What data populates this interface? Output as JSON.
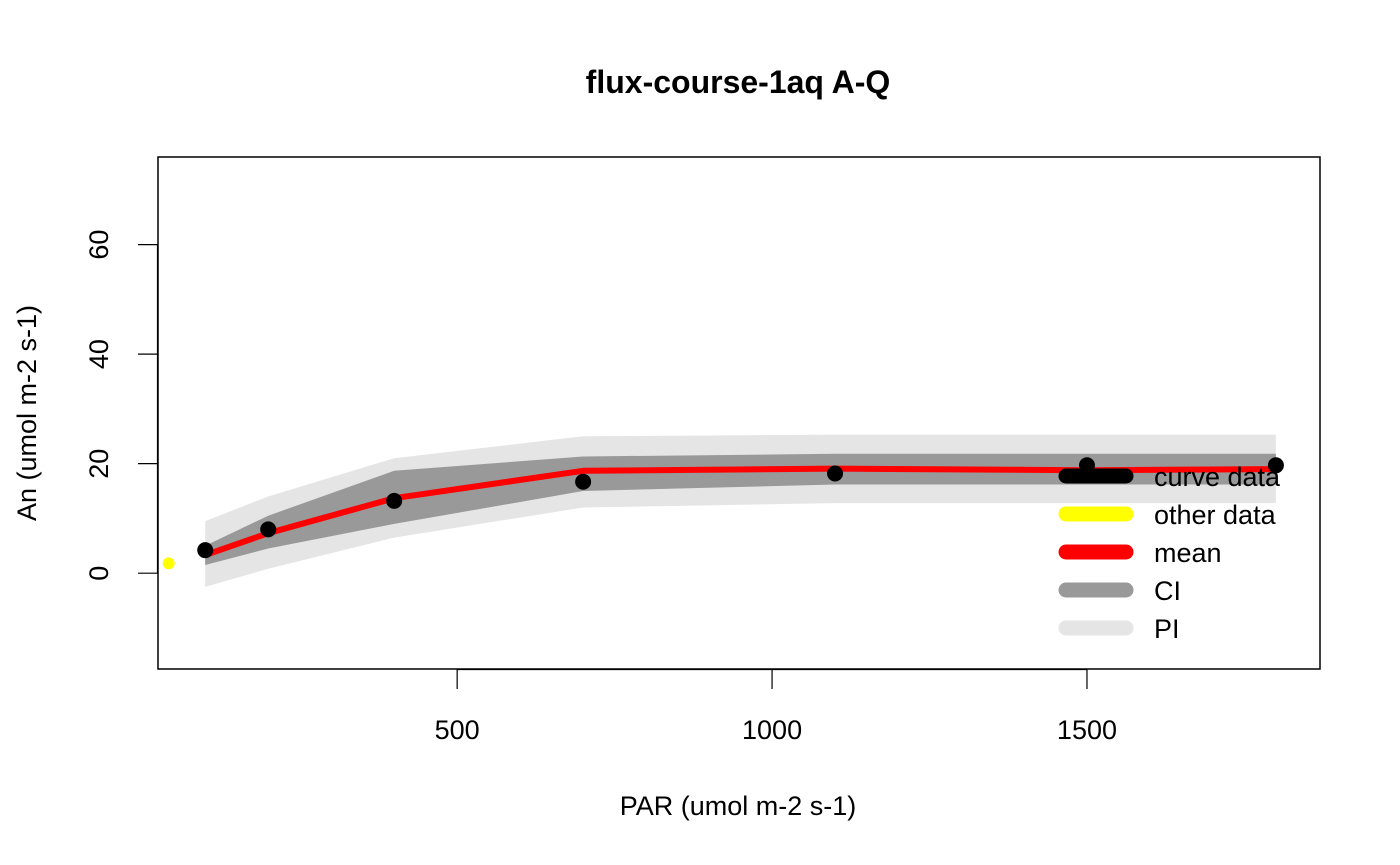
{
  "chart_data": {
    "type": "line",
    "title": "flux-course-1aq A-Q",
    "xlabel": "PAR (umol m-2 s-1)",
    "ylabel": "An (umol m-2 s-1)",
    "xlim": [
      25,
      1870
    ],
    "ylim": [
      -17.5,
      76
    ],
    "x_ticks": [
      500,
      1000,
      1500
    ],
    "y_ticks": [
      0,
      20,
      40,
      60
    ],
    "grid": false,
    "legend_position": "right",
    "colors": {
      "curve_data": "#000000",
      "other_data": "#ffff00",
      "mean": "#ff0000",
      "ci": "#999999",
      "pi": "#e5e5e5"
    },
    "pi_band": {
      "x": [
        100,
        200,
        400,
        700,
        1100,
        1500,
        1800
      ],
      "lower": [
        -2.5,
        0.8,
        6.5,
        12,
        12.8,
        12.8,
        12.8
      ],
      "upper": [
        9.5,
        14,
        21,
        25,
        25.3,
        25.3,
        25.3
      ]
    },
    "ci_band": {
      "x": [
        100,
        200,
        400,
        700,
        1100,
        1500,
        1800
      ],
      "lower": [
        1.5,
        4.5,
        9,
        15,
        16.2,
        16.2,
        16.2
      ],
      "upper": [
        5,
        10.5,
        18.7,
        21.3,
        21.8,
        21.8,
        21.8
      ]
    },
    "series": [
      {
        "name": "mean",
        "x": [
          100,
          200,
          400,
          700,
          1100,
          1500,
          1800
        ],
        "y": [
          3.3,
          7.3,
          13.7,
          18.7,
          19.1,
          18.8,
          19.0
        ]
      },
      {
        "name": "curve data",
        "x": [
          100,
          200,
          400,
          700,
          1100,
          1500,
          1800
        ],
        "y": [
          4.2,
          8.0,
          13.2,
          16.7,
          18.2,
          19.7,
          19.7
        ]
      },
      {
        "name": "other data",
        "x": [
          42
        ],
        "y": [
          1.8
        ]
      }
    ],
    "legend": [
      {
        "label": "curve data",
        "color": "#000000"
      },
      {
        "label": "other data",
        "color": "#ffff00"
      },
      {
        "label": "mean",
        "color": "#ff0000"
      },
      {
        "label": "CI",
        "color": "#999999"
      },
      {
        "label": "PI",
        "color": "#e5e5e5"
      }
    ]
  }
}
